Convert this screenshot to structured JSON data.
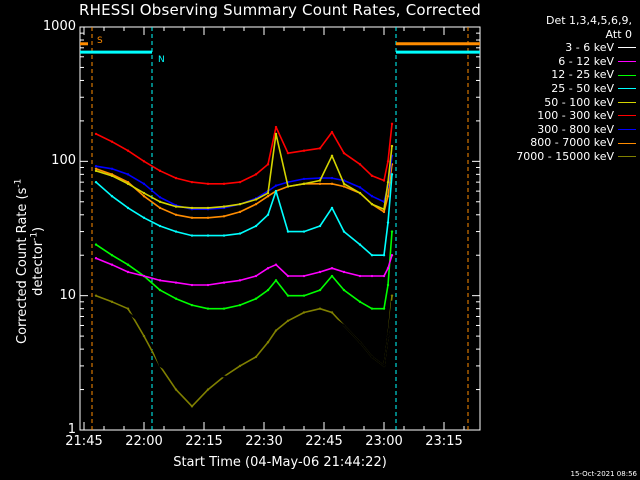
{
  "title": "RHESSI Observing Summary Count Rates, Corrected",
  "legend": {
    "header_line1": "Det 1,3,4,5,6,9,",
    "header_line2": "Att 0",
    "entries": [
      {
        "label": "3 - 6 keV",
        "color": "#000000"
      },
      {
        "label": "6 - 12 keV",
        "color": "#ff00ff"
      },
      {
        "label": "12 - 25 keV",
        "color": "#00ff00"
      },
      {
        "label": "25 - 50 keV",
        "color": "#00ffff"
      },
      {
        "label": "50 - 100 keV",
        "color": "#d4d400"
      },
      {
        "label": "100 - 300 keV",
        "color": "#ff0000"
      },
      {
        "label": "300 - 800 keV",
        "color": "#0000ff"
      },
      {
        "label": "800 - 7000 keV",
        "color": "#ff8c00"
      },
      {
        "label": "7000 - 15000 keV",
        "color": "#808000"
      }
    ]
  },
  "footer": "15-Oct-2021 08:56",
  "chart_data": {
    "type": "line",
    "title": "RHESSI Observing Summary Count Rates, Corrected",
    "xlabel": "Start Time (04-May-06 21:44:22)",
    "ylabel": "Corrected Count Rate (s⁻¹ detector⁻¹)",
    "ylabel_parts": {
      "main": "Corrected Count Rate (s",
      "sup1": "-1",
      "mid": " detector",
      "sup2": "-1",
      "end": ")"
    },
    "y_scale": "log",
    "ylim": [
      1,
      1000
    ],
    "xlim": [
      "21:44",
      "23:24"
    ],
    "x_ticks": [
      "21:45",
      "22:00",
      "22:15",
      "22:30",
      "22:45",
      "23:00",
      "23:15"
    ],
    "y_ticks": [
      "1",
      "10",
      "100",
      "1000"
    ],
    "x_time": [
      "21:48",
      "21:52",
      "21:56",
      "22:00",
      "22:04",
      "22:08",
      "22:12",
      "22:16",
      "22:20",
      "22:24",
      "22:28",
      "22:31",
      "22:33",
      "22:36",
      "22:40",
      "22:44",
      "22:47",
      "22:50",
      "22:54",
      "22:57",
      "23:00",
      "23:01",
      "23:02"
    ],
    "series": [
      {
        "name": "3 - 6 keV",
        "color": "#000000",
        "values": [
          9.5,
          8.5,
          7.5,
          6.0,
          3.0,
          2.5,
          2.5,
          2.5,
          2.5,
          2.5,
          2.5,
          3.5,
          5.0,
          6.0,
          7.0,
          7.5,
          7.0,
          6.0,
          4.5,
          3.5,
          3.0,
          5.0,
          9.0
        ]
      },
      {
        "name": "6 - 12 keV",
        "color": "#ff00ff",
        "values": [
          19,
          17,
          15,
          14,
          13,
          12.5,
          12,
          12,
          12.5,
          13,
          14,
          16,
          17,
          14,
          14,
          15,
          16,
          15,
          14,
          14,
          14,
          16,
          20
        ]
      },
      {
        "name": "12 - 25 keV",
        "color": "#00ff00",
        "values": [
          24,
          20,
          17,
          14,
          11,
          9.5,
          8.5,
          8,
          8,
          8.5,
          9.5,
          11,
          13,
          10,
          10,
          11,
          14,
          11,
          9,
          8,
          8,
          12,
          30
        ]
      },
      {
        "name": "25 - 50 keV",
        "color": "#00ffff",
        "values": [
          70,
          55,
          45,
          38,
          33,
          30,
          28,
          28,
          28,
          29,
          33,
          40,
          60,
          30,
          30,
          33,
          45,
          30,
          24,
          20,
          20,
          35,
          80
        ]
      },
      {
        "name": "50 - 100 keV",
        "color": "#d4d400",
        "values": [
          85,
          78,
          68,
          58,
          50,
          46,
          45,
          45,
          46,
          48,
          52,
          58,
          160,
          65,
          68,
          72,
          110,
          68,
          58,
          48,
          44,
          70,
          130
        ]
      },
      {
        "name": "100 - 300 keV",
        "color": "#ff0000",
        "values": [
          160,
          140,
          120,
          100,
          85,
          75,
          70,
          68,
          68,
          70,
          80,
          95,
          180,
          115,
          120,
          125,
          165,
          115,
          95,
          78,
          72,
          100,
          190
        ]
      },
      {
        "name": "300 - 800 keV",
        "color": "#0000ff",
        "values": [
          92,
          88,
          80,
          68,
          54,
          47,
          44,
          44,
          45,
          48,
          53,
          60,
          66,
          70,
          74,
          75,
          75,
          72,
          64,
          55,
          50,
          65,
          110
        ]
      },
      {
        "name": "800 - 7000 keV",
        "color": "#ff8c00",
        "values": [
          88,
          80,
          70,
          55,
          45,
          40,
          38,
          38,
          39,
          42,
          48,
          55,
          60,
          65,
          68,
          68,
          68,
          65,
          58,
          48,
          42,
          55,
          95
        ]
      },
      {
        "name": "7000 - 15000 keV",
        "color": "#808000",
        "values": [
          10,
          9,
          8,
          5,
          3,
          2,
          1.5,
          2,
          2.5,
          3,
          3.5,
          4.5,
          5.5,
          6.5,
          7.5,
          8,
          7.5,
          6,
          4.5,
          3.5,
          3,
          5,
          10
        ]
      }
    ],
    "segments": [
      {
        "name": "SAA",
        "label": "S",
        "color": "#ff8c00",
        "level": 750,
        "start": "21:44",
        "end": "21:46"
      },
      {
        "name": "Night",
        "label": "N",
        "color": "#00ffff",
        "level": 650,
        "start": "21:44",
        "end": "22:02"
      },
      {
        "name": "SAA",
        "label": "",
        "color": "#ff8c00",
        "level": 750,
        "start": "23:03",
        "end": "23:24"
      },
      {
        "name": "Night",
        "label": "",
        "color": "#00ffff",
        "level": 650,
        "start": "23:03",
        "end": "23:24"
      }
    ],
    "boundaries": [
      {
        "time": "21:47",
        "color": "#ff8c00"
      },
      {
        "time": "22:02",
        "color": "#00ffff"
      },
      {
        "time": "23:03",
        "color": "#00ffff"
      },
      {
        "time": "23:21",
        "color": "#ff8c00"
      }
    ]
  }
}
